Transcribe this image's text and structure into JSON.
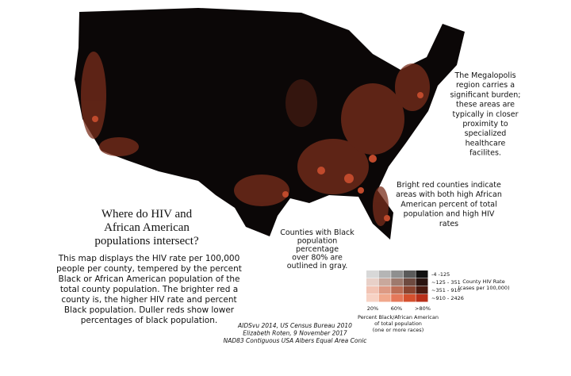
{
  "title": [
    "Where do HIV and",
    "African American",
    "populations intersect?"
  ],
  "description": [
    "This map displays the HIV rate per 100,000",
    "people per county, tempered by the percent",
    "Black or African American population of the",
    "total county population. The brighter red a",
    "county is, the higher  HIV rate and percent",
    "Black population. Duller reds show lower",
    "percentages of black population."
  ],
  "annotations": {
    "megalopolis": [
      "The Megalopolis",
      "region carries a",
      "significant burden;",
      "these areas are",
      "typically in closer",
      "proximity to",
      "specialized",
      "healthcare",
      "facilites."
    ],
    "bright_red": [
      "Bright red counties indicate",
      "areas with both high African",
      "American percent of total",
      "population and high HIV",
      "rates"
    ],
    "outlined": [
      "Counties with Black",
      "population",
      "percentage",
      "over 80% are",
      "outlined in gray."
    ]
  },
  "legend": {
    "rate_labels": [
      "-4 -125",
      "~125 - 351",
      "~351 - 910",
      "~910 - 2426"
    ],
    "rate_title": [
      "County HIV Rate",
      "(cases per 100,000)"
    ],
    "percent_labels": [
      "20%",
      "60%",
      ">80%"
    ],
    "percent_title": [
      "Percent Black/African American",
      "of total population",
      "(one or more races)"
    ]
  },
  "credits": [
    "AIDSvu 2014, US Census Bureau 2010",
    "Elizabeth Roten, 9 November 2017",
    "NAD83 Contiguous USA Albers Equal Area Conic"
  ]
}
